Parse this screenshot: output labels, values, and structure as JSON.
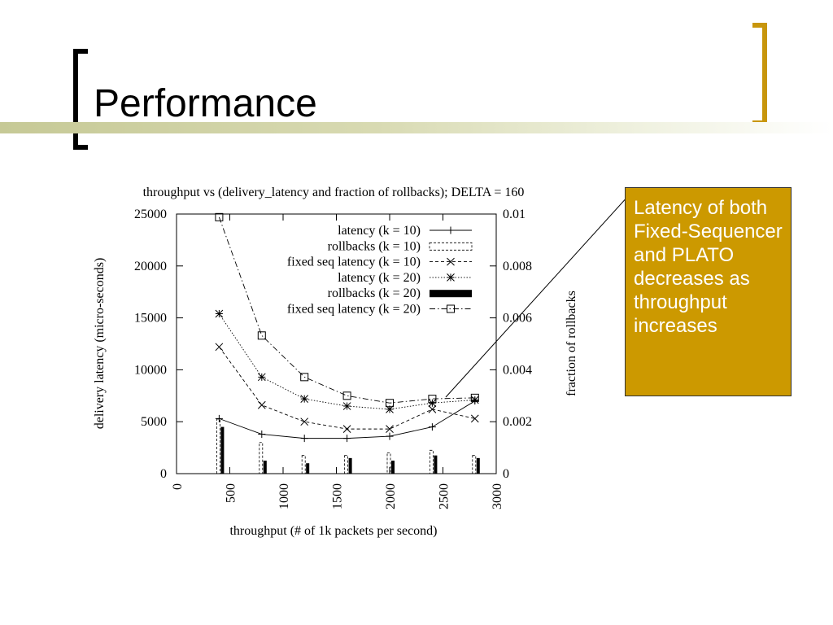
{
  "slide": {
    "title": "Performance",
    "callout": "Latency of both Fixed-Sequencer and PLATO decreases as throughput increases"
  },
  "chart_data": {
    "type": "line",
    "title": "throughput vs (delivery_latency and fraction of rollbacks); DELTA = 160",
    "xlabel": "throughput (# of 1k packets per second)",
    "ylabel": "delivery latency (micro-seconds)",
    "y2label": "fraction of rollbacks",
    "xlim": [
      0,
      3000
    ],
    "ylim": [
      0,
      25000
    ],
    "y2lim": [
      0,
      0.01
    ],
    "x_ticks": [
      "0",
      "500",
      "1000",
      "1500",
      "2000",
      "2500",
      "3000"
    ],
    "y_ticks": [
      "0",
      "5000",
      "10000",
      "15000",
      "20000",
      "25000"
    ],
    "y2_ticks": [
      "0",
      "0.002",
      "0.004",
      "0.006",
      "0.008",
      "0.01"
    ],
    "grid": false,
    "legend_position": "top-right",
    "x": [
      400,
      800,
      1200,
      1600,
      2000,
      2400,
      2800
    ],
    "series": [
      {
        "name": "latency (k = 10)",
        "kind": "line",
        "axis": "left",
        "marker": "plus",
        "dash": "solid",
        "values": [
          5300,
          3800,
          3400,
          3400,
          3600,
          4500,
          7000
        ]
      },
      {
        "name": "rollbacks (k = 10)",
        "kind": "bar",
        "axis": "right",
        "style": "dashed-outline",
        "values": [
          0.0021,
          0.0012,
          0.0007,
          0.0007,
          0.0008,
          0.0009,
          0.0007
        ]
      },
      {
        "name": "fixed seq latency (k = 10)",
        "kind": "line",
        "axis": "left",
        "marker": "x",
        "dash": "dashed",
        "values": [
          12200,
          6600,
          5000,
          4300,
          4300,
          6200,
          5300
        ]
      },
      {
        "name": "latency (k = 20)",
        "kind": "line",
        "axis": "left",
        "marker": "star",
        "dash": "dotted",
        "values": [
          15400,
          9300,
          7200,
          6500,
          6200,
          6800,
          7100
        ]
      },
      {
        "name": "rollbacks (k = 20)",
        "kind": "bar",
        "axis": "right",
        "style": "solid",
        "values": [
          0.0018,
          0.0005,
          0.0004,
          0.0006,
          0.0005,
          0.0007,
          0.0006
        ]
      },
      {
        "name": "fixed seq latency (k = 20)",
        "kind": "line",
        "axis": "left",
        "marker": "square",
        "dash": "dashdot",
        "values": [
          24700,
          13300,
          9300,
          7500,
          6800,
          7200,
          7300
        ]
      }
    ]
  }
}
